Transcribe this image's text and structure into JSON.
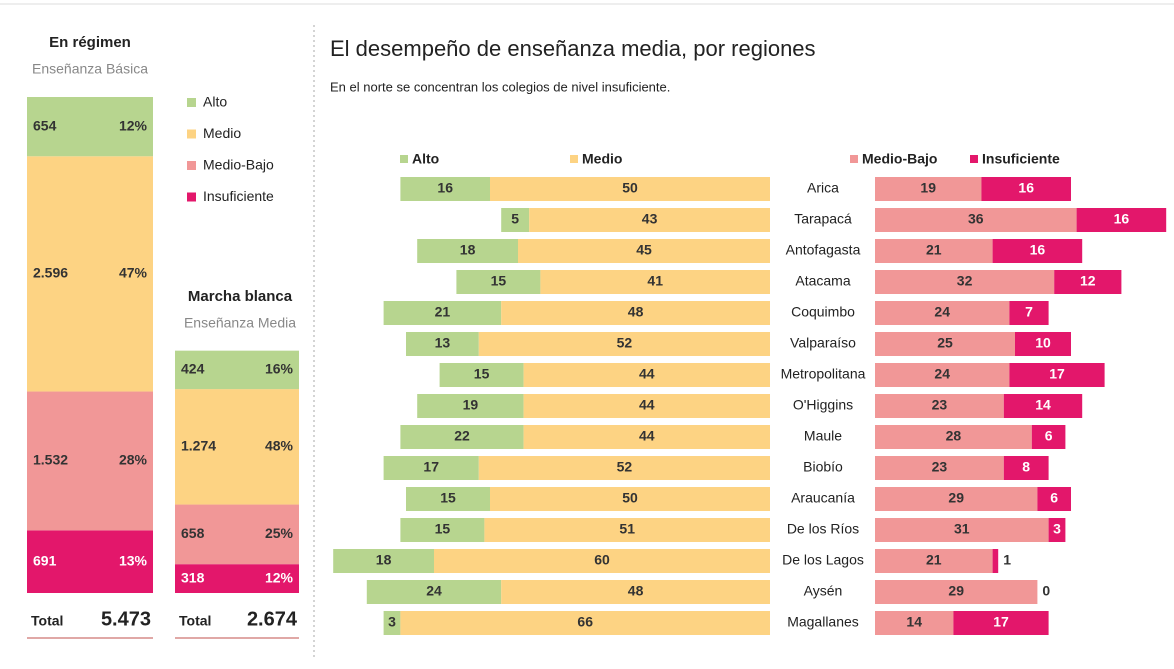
{
  "chart_data": [
    {
      "type": "stacked-column",
      "title": "En régimen",
      "subtitle": "Enseñanza Básica",
      "categories": [
        "Alto",
        "Medio",
        "Medio-Bajo",
        "Insuficiente"
      ],
      "colors": [
        "#b7d58f",
        "#fdd383",
        "#f19797",
        "#e3176b"
      ],
      "counts": [
        654,
        2596,
        1532,
        691
      ],
      "count_labels": [
        "654",
        "2.596",
        "1.532",
        "691"
      ],
      "shares": [
        12,
        47,
        28,
        13
      ],
      "share_labels": [
        "12%",
        "47%",
        "28%",
        "13%"
      ],
      "total_label": "Total",
      "total": 5473,
      "total_display": "5.473"
    },
    {
      "type": "stacked-column",
      "title": "Marcha blanca",
      "subtitle": "Enseñanza Media",
      "colors": [
        "#b7d58f",
        "#fdd383",
        "#f19797",
        "#e3176b"
      ],
      "counts": [
        424,
        1274,
        658,
        318
      ],
      "count_labels": [
        "424",
        "1.274",
        "658",
        "318"
      ],
      "shares": [
        16,
        48,
        25,
        12
      ],
      "share_labels": [
        "16%",
        "48%",
        "25%",
        "12%"
      ],
      "total_label": "Total",
      "total": 2674,
      "total_display": "2.674"
    },
    {
      "type": "diverging-bar",
      "title": "El desempeño de enseñanza media, por regiones",
      "subtitle": "En el norte se concentran los colegios de nivel insuficiente.",
      "categories": [
        "Arica",
        "Tarapacá",
        "Antofagasta",
        "Atacama",
        "Coquimbo",
        "Valparaíso",
        "Metropolitana",
        "O'Higgins",
        "Maule",
        "Biobío",
        "Araucanía",
        "De los Ríos",
        "De los Lagos",
        "Aysén",
        "Magallanes"
      ],
      "series": [
        {
          "name": "Alto",
          "color": "#b7d58f",
          "values": [
            16,
            5,
            18,
            15,
            21,
            13,
            15,
            19,
            22,
            17,
            15,
            15,
            18,
            24,
            3
          ]
        },
        {
          "name": "Medio",
          "color": "#fdd383",
          "values": [
            50,
            43,
            45,
            41,
            48,
            52,
            44,
            44,
            44,
            52,
            50,
            51,
            60,
            48,
            66
          ]
        },
        {
          "name": "Medio-Bajo",
          "color": "#f19797",
          "values": [
            19,
            36,
            21,
            32,
            24,
            25,
            24,
            23,
            28,
            23,
            29,
            31,
            21,
            29,
            14
          ]
        },
        {
          "name": "Insuficiente",
          "color": "#e3176b",
          "values": [
            16,
            16,
            16,
            12,
            7,
            10,
            17,
            14,
            6,
            8,
            6,
            3,
            1,
            0,
            17
          ]
        }
      ]
    }
  ]
}
